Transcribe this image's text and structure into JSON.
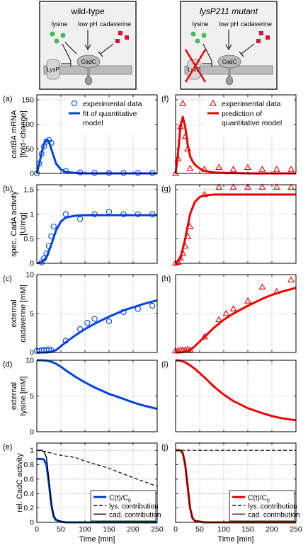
{
  "schematic": {
    "left": {
      "title": "wild-type",
      "lysine": "lysine",
      "low_ph": "low pH",
      "cadaverine": "cadaverine",
      "lysp": "LysP",
      "cadc": "CadC"
    },
    "right": {
      "title": "lysP211 mutant",
      "lysine": "lysine",
      "low_ph": "low pH",
      "cadaverine": "cadaverine",
      "lysp": "LysP",
      "cadc": "CadC"
    }
  },
  "rows": [
    {
      "ylabel_lines": [
        "cadBA mRNA",
        "[fold−change]"
      ],
      "yticks": [
        "0",
        "50",
        "100",
        "150"
      ]
    },
    {
      "ylabel_lines": [
        "spec. CadA activity",
        "[U/mg]"
      ],
      "yticks": [
        "0",
        "0.5",
        "1",
        "1.5"
      ]
    },
    {
      "ylabel_lines": [
        "external",
        "cadaverine [mM]"
      ],
      "yticks": [
        "0",
        "5",
        "10"
      ]
    },
    {
      "ylabel_lines": [
        "external",
        "lysine [mM]"
      ],
      "yticks": [
        "0",
        "5",
        "10"
      ]
    },
    {
      "ylabel_lines": [
        "rel. CadC activity"
      ],
      "yticks": [
        "0",
        "0.2",
        "0.4",
        "0.6",
        "0.8",
        "1"
      ]
    }
  ],
  "xticks": [
    "0",
    "50",
    "100",
    "150",
    "200",
    "250"
  ],
  "xlabel": "Time [min]",
  "panel_letters": [
    "(a)",
    "(b)",
    "(c)",
    "(d)",
    "(e)",
    "(f)",
    "(g)",
    "(h)",
    "(i)",
    "(j)"
  ],
  "legends": {
    "a": [
      "experimental data",
      "fit of quantitative",
      "model"
    ],
    "f": [
      "experimental data",
      "prediction of",
      "quantitative model"
    ],
    "e": [
      "C(t)/C",
      "lys. contribution",
      "cad. contribution"
    ],
    "j": [
      "C(t)/C",
      "lys. contribution",
      "cad. contribution"
    ],
    "subscript": "0"
  },
  "colors": {
    "wild_type": "#0044dd",
    "mutant": "#ee0000",
    "cad_mutant": "#550000",
    "grid": "#888888"
  },
  "chart_data": [
    {
      "panel": "a",
      "type": "line",
      "ylim": [
        0,
        160
      ],
      "xlim": [
        0,
        250
      ],
      "scatter": {
        "x": [
          0,
          5,
          10,
          15,
          20,
          25,
          30,
          60,
          90,
          120,
          150,
          180,
          210,
          240
        ],
        "y": [
          0,
          20,
          40,
          55,
          65,
          68,
          62,
          5,
          2,
          1,
          1,
          1,
          1,
          1
        ]
      },
      "line": {
        "x": [
          0,
          5,
          10,
          15,
          20,
          25,
          30,
          35,
          40,
          50,
          60,
          80,
          100,
          150,
          200,
          250
        ],
        "y": [
          0,
          20,
          42,
          60,
          68,
          65,
          50,
          35,
          20,
          8,
          3,
          1,
          0,
          0,
          0,
          0
        ]
      }
    },
    {
      "panel": "b",
      "type": "line",
      "ylim": [
        0,
        1.6
      ],
      "xlim": [
        0,
        250
      ],
      "scatter": {
        "x": [
          10,
          15,
          20,
          25,
          30,
          35,
          60,
          90,
          120,
          150,
          180,
          210,
          240
        ],
        "y": [
          0.02,
          0.1,
          0.2,
          0.35,
          0.55,
          0.75,
          1.0,
          0.9,
          1.0,
          1.05,
          1.0,
          1.0,
          1.0
        ]
      },
      "line": {
        "x": [
          0,
          10,
          20,
          30,
          40,
          50,
          60,
          80,
          100,
          150,
          200,
          250
        ],
        "y": [
          0,
          0.02,
          0.12,
          0.38,
          0.67,
          0.85,
          0.93,
          0.97,
          0.98,
          0.98,
          0.98,
          0.98
        ]
      }
    },
    {
      "panel": "c",
      "type": "line",
      "ylim": [
        0,
        10
      ],
      "xlim": [
        0,
        250
      ],
      "scatter": {
        "x": [
          0,
          5,
          10,
          15,
          20,
          25,
          30,
          60,
          90,
          105,
          120,
          150,
          180,
          210,
          240
        ],
        "y": [
          0.2,
          0.2,
          0.3,
          0.3,
          0.3,
          0.4,
          0.3,
          1.5,
          3.0,
          3.8,
          4.3,
          4.0,
          5.2,
          5.6,
          6.0
        ]
      },
      "line": {
        "x": [
          0,
          10,
          20,
          30,
          40,
          50,
          60,
          80,
          100,
          120,
          150,
          180,
          200,
          220,
          250
        ],
        "y": [
          0,
          0,
          0,
          0.1,
          0.3,
          0.8,
          1.3,
          2.2,
          3.0,
          3.7,
          4.6,
          5.4,
          5.8,
          6.2,
          6.7
        ]
      }
    },
    {
      "panel": "d",
      "type": "line",
      "ylim": [
        0,
        10
      ],
      "xlim": [
        0,
        250
      ],
      "line": {
        "x": [
          0,
          10,
          20,
          30,
          40,
          50,
          60,
          80,
          100,
          120,
          150,
          180,
          200,
          220,
          250
        ],
        "y": [
          10,
          10,
          9.95,
          9.8,
          9.5,
          9.1,
          8.6,
          7.7,
          6.9,
          6.2,
          5.3,
          4.6,
          4.1,
          3.7,
          3.2
        ]
      }
    },
    {
      "panel": "e",
      "type": "line",
      "ylim": [
        0,
        1.1
      ],
      "xlim": [
        0,
        250
      ],
      "lines": [
        {
          "name": "C(t)/C0",
          "x": [
            0,
            10,
            15,
            20,
            25,
            30,
            35,
            40,
            50,
            60,
            100,
            250
          ],
          "y": [
            0.88,
            0.88,
            0.87,
            0.8,
            0.55,
            0.25,
            0.08,
            0.03,
            0.01,
            0,
            0,
            0
          ]
        },
        {
          "name": "lys. contribution",
          "x": [
            0,
            10,
            20,
            30,
            50,
            80,
            100,
            150,
            200,
            250
          ],
          "y": [
            1,
            0.99,
            0.98,
            0.96,
            0.93,
            0.9,
            0.85,
            0.75,
            0.62,
            0.5
          ]
        },
        {
          "name": "cad. contribution",
          "x": [
            0,
            10,
            15,
            20,
            25,
            30,
            35,
            40,
            50,
            60,
            100,
            250
          ],
          "y": [
            1,
            1,
            0.98,
            0.9,
            0.6,
            0.28,
            0.1,
            0.04,
            0.01,
            0,
            0,
            0
          ]
        }
      ]
    },
    {
      "panel": "f",
      "type": "line",
      "ylim": [
        0,
        160
      ],
      "xlim": [
        0,
        250
      ],
      "scatter": {
        "x": [
          0,
          5,
          10,
          15,
          20,
          25,
          30,
          60,
          90,
          120,
          150,
          180,
          210,
          240
        ],
        "y": [
          0,
          30,
          95,
          142,
          75,
          50,
          10,
          8,
          12,
          8,
          12,
          8,
          8,
          8
        ]
      },
      "line": {
        "x": [
          0,
          5,
          10,
          15,
          20,
          25,
          30,
          35,
          40,
          50,
          60,
          80,
          100,
          150,
          200,
          250
        ],
        "y": [
          0,
          40,
          95,
          115,
          95,
          60,
          35,
          25,
          18,
          10,
          5,
          2,
          1,
          0,
          0,
          0
        ]
      }
    },
    {
      "panel": "g",
      "type": "line",
      "ylim": [
        0,
        1.6
      ],
      "xlim": [
        0,
        250
      ],
      "scatter": {
        "x": [
          0,
          5,
          10,
          15,
          20,
          25,
          30,
          60,
          90,
          120,
          150,
          180,
          210,
          240
        ],
        "y": [
          0,
          0.02,
          0.1,
          0.2,
          0.35,
          0.55,
          0.75,
          1.4,
          1.55,
          1.55,
          1.55,
          1.55,
          1.55,
          1.55
        ]
      },
      "line": {
        "x": [
          0,
          10,
          20,
          30,
          40,
          50,
          60,
          80,
          100,
          150,
          200,
          250
        ],
        "y": [
          0,
          0.1,
          0.5,
          1.0,
          1.25,
          1.35,
          1.38,
          1.4,
          1.4,
          1.4,
          1.4,
          1.4
        ]
      }
    },
    {
      "panel": "h",
      "type": "line",
      "ylim": [
        0,
        10
      ],
      "xlim": [
        0,
        250
      ],
      "scatter": {
        "x": [
          0,
          5,
          10,
          15,
          20,
          25,
          30,
          60,
          90,
          105,
          120,
          150,
          180,
          210,
          240
        ],
        "y": [
          0.2,
          0.2,
          0.3,
          0.3,
          0.3,
          0.4,
          0.3,
          2.0,
          4.2,
          5.0,
          5.6,
          6.6,
          8.4,
          7.8,
          9.3
        ]
      },
      "line": {
        "x": [
          0,
          10,
          20,
          30,
          40,
          50,
          60,
          80,
          100,
          120,
          150,
          180,
          200,
          220,
          250
        ],
        "y": [
          0,
          0,
          0.1,
          0.3,
          0.8,
          1.4,
          2.0,
          3.2,
          4.2,
          5.0,
          6.0,
          6.9,
          7.4,
          7.8,
          8.3
        ]
      }
    },
    {
      "panel": "i",
      "type": "line",
      "ylim": [
        0,
        10
      ],
      "xlim": [
        0,
        250
      ],
      "line": {
        "x": [
          0,
          10,
          20,
          30,
          40,
          50,
          60,
          80,
          100,
          120,
          150,
          180,
          200,
          220,
          250
        ],
        "y": [
          10,
          9.95,
          9.7,
          9.3,
          8.8,
          8.2,
          7.6,
          6.3,
          5.2,
          4.3,
          3.3,
          2.6,
          2.2,
          1.9,
          1.6
        ]
      }
    },
    {
      "panel": "j",
      "type": "line",
      "ylim": [
        0,
        1.1
      ],
      "xlim": [
        0,
        250
      ],
      "lines": [
        {
          "name": "C(t)/C0",
          "x": [
            0,
            10,
            15,
            20,
            25,
            30,
            35,
            40,
            50,
            60,
            100,
            250
          ],
          "y": [
            1,
            1,
            0.96,
            0.8,
            0.5,
            0.2,
            0.06,
            0.02,
            0.01,
            0,
            0,
            0
          ]
        },
        {
          "name": "lys. contribution",
          "x": [
            0,
            250
          ],
          "y": [
            1,
            1
          ]
        },
        {
          "name": "cad. contribution",
          "x": [
            0,
            10,
            15,
            20,
            25,
            30,
            35,
            40,
            50,
            60,
            100,
            250
          ],
          "y": [
            1,
            1,
            0.96,
            0.8,
            0.5,
            0.2,
            0.06,
            0.02,
            0.01,
            0,
            0,
            0
          ]
        }
      ]
    }
  ]
}
